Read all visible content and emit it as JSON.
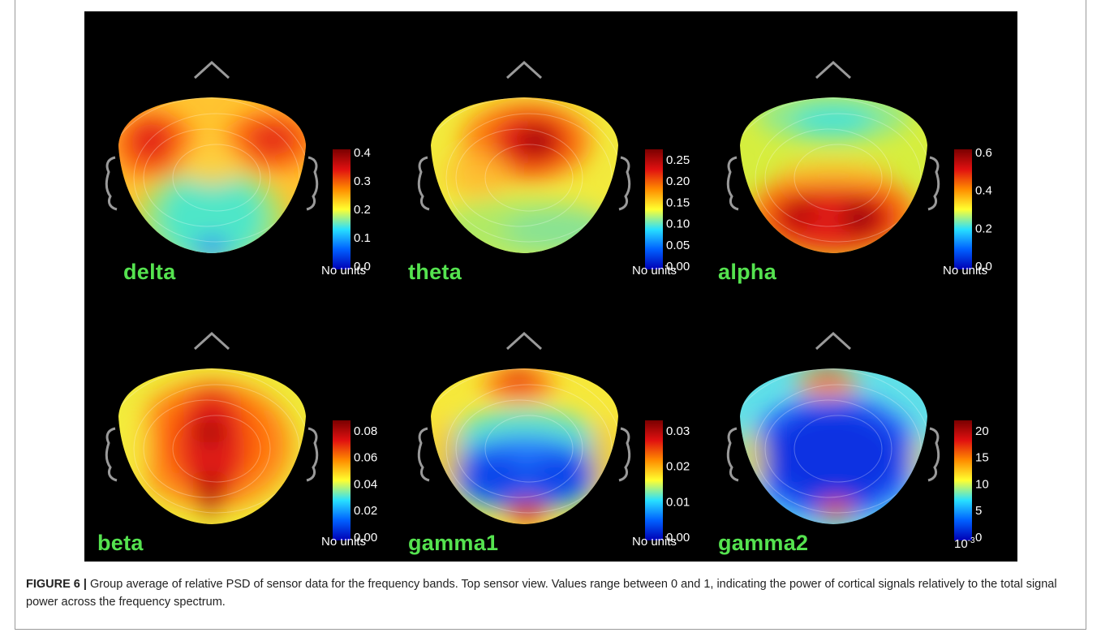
{
  "figure": {
    "caption_label": "FIGURE 6 |",
    "caption_text": "Group average of relative PSD of sensor data for the frequency bands. Top sensor view. Values range between 0 and 1, indicating the power of cortical signals relatively to the total signal power across the frequency spectrum."
  },
  "colors": {
    "background": "#000000",
    "label_green": "#55e34f",
    "colormap": [
      "#0000b4",
      "#0060ff",
      "#28e0ff",
      "#ffff30",
      "#ff8c00",
      "#e01010",
      "#7a0000"
    ]
  },
  "panels": [
    {
      "id": "delta",
      "band": "delta",
      "unit": "No units",
      "ticks": [
        "0.4",
        "0.3",
        "0.2",
        "0.1",
        "0.0"
      ],
      "range": [
        0.0,
        0.4
      ],
      "pattern": "frontal-bilateral-high"
    },
    {
      "id": "theta",
      "band": "theta",
      "unit": "No units",
      "ticks": [
        "0.25",
        "0.20",
        "0.15",
        "0.10",
        "0.05",
        "0.00"
      ],
      "range": [
        0.0,
        0.28
      ],
      "pattern": "frontal-central-high"
    },
    {
      "id": "alpha",
      "band": "alpha",
      "unit": "No units",
      "ticks": [
        "0.6",
        "0.4",
        "0.2",
        "0.0"
      ],
      "range": [
        0.0,
        0.65
      ],
      "pattern": "posterior-high"
    },
    {
      "id": "beta",
      "band": "beta",
      "unit": "No units",
      "ticks": [
        "0.08",
        "0.06",
        "0.04",
        "0.02",
        "0.00"
      ],
      "range": [
        0.0,
        0.095
      ],
      "pattern": "central-midline-high"
    },
    {
      "id": "gamma1",
      "band": "gamma1",
      "unit": "No units",
      "ticks": [
        "0.03",
        "0.02",
        "0.01",
        "0.00"
      ],
      "range": [
        0.0,
        0.032
      ],
      "pattern": "frontal-occipital-high-center-low"
    },
    {
      "id": "gamma2",
      "band": "gamma2",
      "unit": "10",
      "unit_exp": "-3",
      "ticks": [
        "20",
        "15",
        "10",
        "5",
        "0"
      ],
      "range": [
        0,
        24
      ],
      "pattern": "center-very-low"
    }
  ]
}
